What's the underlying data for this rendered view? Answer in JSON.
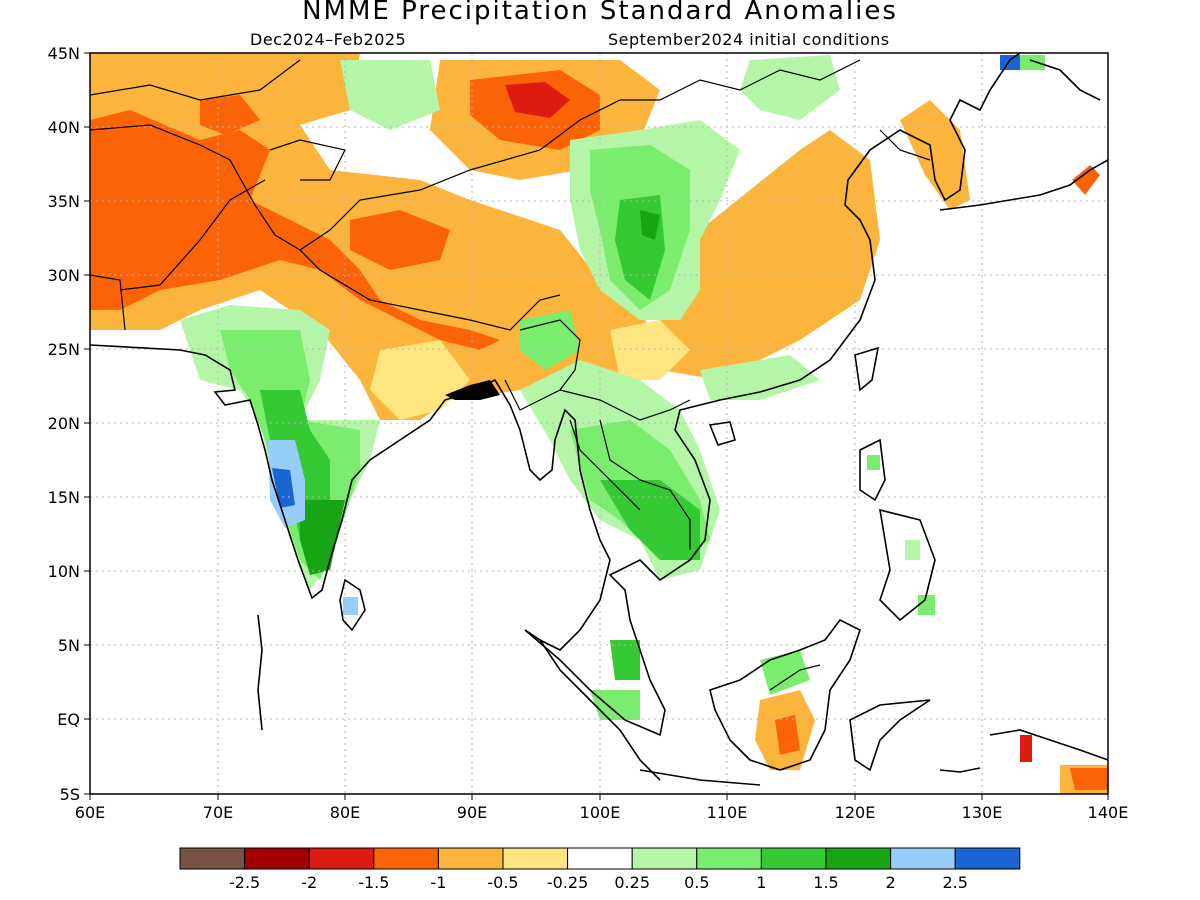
{
  "title": "NMME Precipitation Standard Anomalies",
  "period": "Dec2024–Feb2025",
  "initial_conditions": "September2024 initial conditions",
  "lon_labels": [
    "60E",
    "70E",
    "80E",
    "90E",
    "100E",
    "110E",
    "120E",
    "130E",
    "140E"
  ],
  "lat_labels": [
    "45N",
    "40N",
    "35N",
    "30N",
    "25N",
    "20N",
    "15N",
    "10N",
    "5N",
    "EQ",
    "5S"
  ],
  "colorbar": {
    "colors": [
      "#7a5146",
      "#a50000",
      "#dd1b10",
      "#fb6307",
      "#fbb43c",
      "#fee57f",
      "#ffffff",
      "#b5f5a8",
      "#7aec6e",
      "#35c934",
      "#18a515",
      "#97cdf9",
      "#1a64d4"
    ],
    "labels": [
      "-2.5",
      "-2",
      "-1.5",
      "-1",
      "-0.5",
      "-0.25",
      "0.25",
      "0.5",
      "1",
      "1.5",
      "2",
      "2.5"
    ]
  },
  "colors": {
    "coast": "#000000",
    "grid": "#b5b5b5"
  }
}
